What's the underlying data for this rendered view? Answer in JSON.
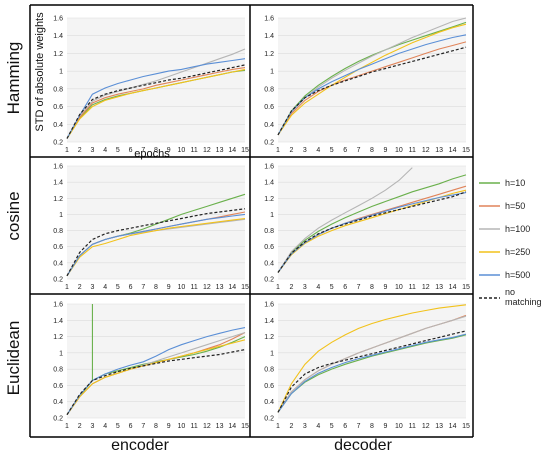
{
  "figure": {
    "row_labels": [
      "Hamming",
      "cosine",
      "Euclidean"
    ],
    "col_labels": [
      "encoder",
      "decoder"
    ],
    "ylabel": "STD of absolute weights",
    "xlabel": "epochs",
    "legend": [
      {
        "label": "h=10",
        "color": "#6ab04c",
        "dash": false
      },
      {
        "label": "h=50",
        "color": "#e0845a",
        "dash": false
      },
      {
        "label": "h=100",
        "color": "#b5b5b5",
        "dash": false
      },
      {
        "label": "h=250",
        "color": "#f2c21b",
        "dash": false
      },
      {
        "label": "h=500",
        "color": "#5b8fd6",
        "dash": false
      },
      {
        "label": "no matching",
        "color": "#222222",
        "dash": true
      }
    ]
  },
  "chart_data": [
    {
      "type": "line",
      "panel": "Hamming-encoder",
      "x": [
        1,
        2,
        3,
        4,
        5,
        6,
        7,
        8,
        9,
        10,
        11,
        12,
        13,
        14,
        15
      ],
      "ylim": [
        0.2,
        1.6
      ],
      "yticks": [
        0.2,
        0.4,
        0.6,
        0.8,
        1,
        1.2,
        1.4,
        1.6
      ],
      "grid": true,
      "ylabel": "STD of absolute weights",
      "xlabel": "epochs",
      "series": [
        {
          "name": "h=10",
          "color": "#6ab04c",
          "dash": false,
          "values": [
            0.24,
            0.47,
            0.62,
            0.68,
            0.72,
            0.75,
            0.78,
            0.81,
            0.84,
            0.87,
            0.9,
            0.93,
            0.96,
            0.99,
            1.01
          ]
        },
        {
          "name": "h=50",
          "color": "#e0845a",
          "dash": false,
          "values": [
            0.24,
            0.48,
            0.64,
            0.7,
            0.74,
            0.77,
            0.8,
            0.84,
            0.87,
            0.9,
            0.93,
            0.96,
            0.99,
            1.02,
            1.04
          ]
        },
        {
          "name": "h=100",
          "color": "#b5b5b5",
          "dash": false,
          "values": [
            0.24,
            0.5,
            0.66,
            0.73,
            0.77,
            0.81,
            0.85,
            0.89,
            0.94,
            0.99,
            1.04,
            1.09,
            1.14,
            1.19,
            1.25
          ]
        },
        {
          "name": "h=250",
          "color": "#f2c21b",
          "dash": false,
          "values": [
            0.24,
            0.46,
            0.6,
            0.67,
            0.71,
            0.75,
            0.78,
            0.81,
            0.84,
            0.87,
            0.9,
            0.93,
            0.96,
            0.99,
            1.02
          ]
        },
        {
          "name": "h=500",
          "color": "#5b8fd6",
          "dash": false,
          "values": [
            0.24,
            0.5,
            0.74,
            0.81,
            0.86,
            0.9,
            0.94,
            0.97,
            1.0,
            1.02,
            1.05,
            1.08,
            1.1,
            1.12,
            1.14
          ]
        },
        {
          "name": "no matching",
          "color": "#222222",
          "dash": true,
          "values": [
            0.24,
            0.51,
            0.68,
            0.74,
            0.78,
            0.81,
            0.84,
            0.87,
            0.9,
            0.92,
            0.95,
            0.98,
            1.01,
            1.04,
            1.07
          ]
        }
      ]
    },
    {
      "type": "line",
      "panel": "Hamming-decoder",
      "x": [
        1,
        2,
        3,
        4,
        5,
        6,
        7,
        8,
        9,
        10,
        11,
        12,
        13,
        14,
        15
      ],
      "ylim": [
        0.2,
        1.6
      ],
      "yticks": [
        0.2,
        0.4,
        0.6,
        0.8,
        1,
        1.2,
        1.4,
        1.6
      ],
      "grid": true,
      "series": [
        {
          "name": "h=10",
          "color": "#6ab04c",
          "dash": false,
          "values": [
            0.28,
            0.55,
            0.72,
            0.84,
            0.94,
            1.03,
            1.11,
            1.18,
            1.24,
            1.3,
            1.35,
            1.4,
            1.45,
            1.5,
            1.55
          ]
        },
        {
          "name": "h=50",
          "color": "#e0845a",
          "dash": false,
          "values": [
            0.28,
            0.52,
            0.67,
            0.77,
            0.84,
            0.9,
            0.95,
            1.0,
            1.05,
            1.1,
            1.15,
            1.2,
            1.25,
            1.29,
            1.33
          ]
        },
        {
          "name": "h=100",
          "color": "#b5b5b5",
          "dash": false,
          "values": [
            0.28,
            0.54,
            0.7,
            0.82,
            0.92,
            1.01,
            1.09,
            1.17,
            1.24,
            1.31,
            1.38,
            1.44,
            1.5,
            1.56,
            1.61
          ]
        },
        {
          "name": "h=250",
          "color": "#f2c21b",
          "dash": false,
          "values": [
            0.28,
            0.5,
            0.64,
            0.74,
            0.84,
            0.93,
            1.02,
            1.1,
            1.18,
            1.25,
            1.32,
            1.38,
            1.44,
            1.49,
            1.53
          ]
        },
        {
          "name": "h=500",
          "color": "#5b8fd6",
          "dash": false,
          "values": [
            0.28,
            0.54,
            0.7,
            0.8,
            0.88,
            0.95,
            1.02,
            1.08,
            1.14,
            1.2,
            1.25,
            1.3,
            1.34,
            1.38,
            1.41
          ]
        },
        {
          "name": "no matching",
          "color": "#222222",
          "dash": true,
          "values": [
            0.28,
            0.55,
            0.7,
            0.78,
            0.84,
            0.89,
            0.94,
            0.99,
            1.03,
            1.07,
            1.11,
            1.15,
            1.19,
            1.23,
            1.27
          ]
        }
      ]
    },
    {
      "type": "line",
      "panel": "cosine-encoder",
      "x": [
        1,
        2,
        3,
        4,
        5,
        6,
        7,
        8,
        9,
        10,
        11,
        12,
        13,
        14,
        15
      ],
      "ylim": [
        0.2,
        1.6
      ],
      "yticks": [
        0.2,
        0.4,
        0.6,
        0.8,
        1,
        1.2,
        1.4,
        1.6
      ],
      "grid": true,
      "series": [
        {
          "name": "h=10",
          "color": "#6ab04c",
          "dash": false,
          "values": [
            0.24,
            0.49,
            0.63,
            0.69,
            0.73,
            0.77,
            0.82,
            0.88,
            0.94,
            1.0,
            1.05,
            1.1,
            1.15,
            1.2,
            1.25
          ]
        },
        {
          "name": "h=50",
          "color": "#e0845a",
          "dash": false,
          "values": [
            0.24,
            0.49,
            0.63,
            0.69,
            0.73,
            0.76,
            0.79,
            0.82,
            0.85,
            0.88,
            0.91,
            0.94,
            0.97,
            1.0,
            1.03
          ]
        },
        {
          "name": "h=100",
          "color": "#b5b5b5",
          "dash": false,
          "values": [
            0.24,
            0.49,
            0.63,
            0.69,
            0.73,
            0.76,
            0.78,
            0.8,
            0.82,
            0.84,
            0.86,
            0.88,
            0.9,
            0.92,
            0.94
          ]
        },
        {
          "name": "h=250",
          "color": "#f2c21b",
          "dash": false,
          "values": [
            0.24,
            0.47,
            0.6,
            0.64,
            0.69,
            0.74,
            0.77,
            0.8,
            0.83,
            0.85,
            0.87,
            0.89,
            0.91,
            0.93,
            0.95
          ]
        },
        {
          "name": "h=500",
          "color": "#5b8fd6",
          "dash": false,
          "values": [
            0.24,
            0.49,
            0.63,
            0.69,
            0.73,
            0.76,
            0.79,
            0.82,
            0.85,
            0.88,
            0.91,
            0.94,
            0.96,
            0.98,
            1.0
          ]
        },
        {
          "name": "no matching",
          "color": "#222222",
          "dash": true,
          "values": [
            0.24,
            0.53,
            0.69,
            0.76,
            0.8,
            0.83,
            0.86,
            0.89,
            0.92,
            0.95,
            0.98,
            1.01,
            1.03,
            1.05,
            1.07
          ]
        }
      ]
    },
    {
      "type": "line",
      "panel": "cosine-decoder",
      "x": [
        1,
        2,
        3,
        4,
        5,
        6,
        7,
        8,
        9,
        10,
        11,
        12,
        13,
        14,
        15
      ],
      "ylim": [
        0.2,
        1.6
      ],
      "yticks": [
        0.2,
        0.4,
        0.6,
        0.8,
        1,
        1.2,
        1.4,
        1.6
      ],
      "grid": true,
      "series": [
        {
          "name": "h=10",
          "color": "#6ab04c",
          "dash": false,
          "values": [
            0.28,
            0.53,
            0.68,
            0.79,
            0.88,
            0.96,
            1.03,
            1.1,
            1.16,
            1.22,
            1.28,
            1.33,
            1.38,
            1.44,
            1.49
          ]
        },
        {
          "name": "h=50",
          "color": "#e0845a",
          "dash": false,
          "values": [
            0.28,
            0.51,
            0.65,
            0.75,
            0.83,
            0.89,
            0.95,
            1.0,
            1.05,
            1.1,
            1.15,
            1.2,
            1.25,
            1.3,
            1.35
          ]
        },
        {
          "name": "h=100",
          "color": "#b5b5b5",
          "dash": false,
          "values": [
            0.28,
            0.54,
            0.7,
            0.83,
            0.93,
            1.02,
            1.11,
            1.2,
            1.3,
            1.42,
            1.58,
            null,
            null,
            null,
            null
          ]
        },
        {
          "name": "h=250",
          "color": "#f2c21b",
          "dash": false,
          "values": [
            0.28,
            0.5,
            0.64,
            0.73,
            0.8,
            0.86,
            0.91,
            0.96,
            1.01,
            1.06,
            1.11,
            1.16,
            1.21,
            1.26,
            1.3
          ]
        },
        {
          "name": "h=500",
          "color": "#5b8fd6",
          "dash": false,
          "values": [
            0.28,
            0.51,
            0.65,
            0.75,
            0.83,
            0.89,
            0.94,
            0.99,
            1.04,
            1.09,
            1.13,
            1.17,
            1.21,
            1.24,
            1.27
          ]
        },
        {
          "name": "no matching",
          "color": "#222222",
          "dash": true,
          "values": [
            0.28,
            0.52,
            0.66,
            0.76,
            0.83,
            0.88,
            0.93,
            0.98,
            1.02,
            1.06,
            1.1,
            1.14,
            1.18,
            1.22,
            1.28
          ]
        }
      ]
    },
    {
      "type": "line",
      "panel": "Euclidean-encoder",
      "x": [
        1,
        2,
        3,
        4,
        5,
        6,
        7,
        8,
        9,
        10,
        11,
        12,
        13,
        14,
        15
      ],
      "ylim": [
        0.2,
        1.6
      ],
      "yticks": [
        0.2,
        0.4,
        0.6,
        0.8,
        1,
        1.2,
        1.4,
        1.6
      ],
      "grid": true,
      "series": [
        {
          "name": "h=10",
          "color": "#6ab04c",
          "dash": false,
          "values": [
            0.24,
            0.47,
            0.66,
            0.74,
            0.78,
            0.82,
            0.86,
            0.89,
            0.92,
            0.95,
            0.98,
            1.02,
            1.07,
            1.13,
            1.2
          ],
          "spike": {
            "x": 3,
            "y": 1.6
          }
        },
        {
          "name": "h=50",
          "color": "#e0845a",
          "dash": false,
          "values": [
            0.24,
            0.46,
            0.62,
            0.7,
            0.75,
            0.8,
            0.84,
            0.88,
            0.92,
            0.96,
            1.0,
            1.05,
            1.1,
            1.17,
            1.25
          ]
        },
        {
          "name": "h=100",
          "color": "#b5b5b5",
          "dash": false,
          "values": [
            0.24,
            0.46,
            0.62,
            0.7,
            0.75,
            0.8,
            0.85,
            0.9,
            0.95,
            1.0,
            1.05,
            1.1,
            1.15,
            1.2,
            1.25
          ]
        },
        {
          "name": "h=250",
          "color": "#f2c21b",
          "dash": false,
          "values": [
            0.24,
            0.46,
            0.62,
            0.7,
            0.75,
            0.8,
            0.84,
            0.88,
            0.92,
            0.96,
            1.0,
            1.04,
            1.08,
            1.12,
            1.16
          ]
        },
        {
          "name": "h=500",
          "color": "#5b8fd6",
          "dash": false,
          "values": [
            0.24,
            0.48,
            0.66,
            0.74,
            0.8,
            0.85,
            0.89,
            0.96,
            1.04,
            1.1,
            1.15,
            1.2,
            1.24,
            1.28,
            1.31
          ]
        },
        {
          "name": "no matching",
          "color": "#222222",
          "dash": true,
          "values": [
            0.24,
            0.49,
            0.66,
            0.72,
            0.77,
            0.81,
            0.84,
            0.87,
            0.9,
            0.92,
            0.94,
            0.96,
            0.98,
            1.01,
            1.04
          ]
        }
      ]
    },
    {
      "type": "line",
      "panel": "Euclidean-decoder",
      "x": [
        1,
        2,
        3,
        4,
        5,
        6,
        7,
        8,
        9,
        10,
        11,
        12,
        13,
        14,
        15
      ],
      "ylim": [
        0.2,
        1.6
      ],
      "yticks": [
        0.2,
        0.4,
        0.6,
        0.8,
        1,
        1.2,
        1.4,
        1.6
      ],
      "grid": true,
      "series": [
        {
          "name": "h=10",
          "color": "#6ab04c",
          "dash": false,
          "values": [
            0.27,
            0.5,
            0.64,
            0.73,
            0.8,
            0.86,
            0.91,
            0.96,
            1.0,
            1.04,
            1.08,
            1.12,
            1.15,
            1.18,
            1.22
          ]
        },
        {
          "name": "h=50",
          "color": "#e0845a",
          "dash": false,
          "values": [
            0.27,
            0.52,
            0.67,
            0.78,
            0.86,
            0.93,
            1.0,
            1.06,
            1.12,
            1.18,
            1.24,
            1.3,
            1.35,
            1.4,
            1.46
          ]
        },
        {
          "name": "h=100",
          "color": "#b5b5b5",
          "dash": false,
          "values": [
            0.27,
            0.52,
            0.67,
            0.78,
            0.86,
            0.93,
            1.0,
            1.06,
            1.12,
            1.18,
            1.24,
            1.3,
            1.35,
            1.4,
            1.45
          ]
        },
        {
          "name": "h=250",
          "color": "#f2c21b",
          "dash": false,
          "values": [
            0.27,
            0.62,
            0.86,
            1.02,
            1.13,
            1.22,
            1.3,
            1.36,
            1.41,
            1.45,
            1.49,
            1.52,
            1.55,
            1.57,
            1.59
          ]
        },
        {
          "name": "h=500",
          "color": "#5b8fd6",
          "dash": false,
          "values": [
            0.27,
            0.5,
            0.65,
            0.75,
            0.82,
            0.88,
            0.93,
            0.97,
            1.01,
            1.05,
            1.09,
            1.13,
            1.16,
            1.19,
            1.23
          ]
        },
        {
          "name": "no matching",
          "color": "#222222",
          "dash": true,
          "values": [
            0.27,
            0.58,
            0.74,
            0.82,
            0.87,
            0.91,
            0.95,
            0.99,
            1.03,
            1.07,
            1.11,
            1.15,
            1.19,
            1.23,
            1.27
          ]
        }
      ]
    }
  ]
}
